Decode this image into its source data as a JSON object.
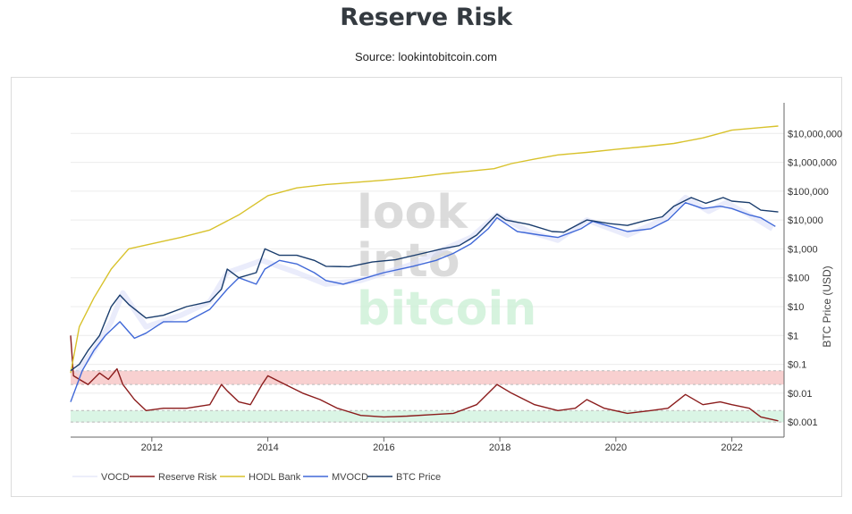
{
  "page": {
    "title": "Reserve Risk",
    "subtitle": "Source: lookintobitcoin.com"
  },
  "watermark": {
    "lines": [
      "look",
      "into",
      "bitcoin"
    ]
  },
  "chart_data": {
    "type": "line",
    "title": "Reserve Risk",
    "ylabel_right": "BTC Price (USD)",
    "xlabel": "",
    "xlim": [
      2010.6,
      2022.9
    ],
    "ylim_log": [
      0.0003,
      100000000
    ],
    "x_ticks": [
      2012,
      2014,
      2016,
      2018,
      2020,
      2022
    ],
    "x_tick_labels": [
      "2012",
      "2014",
      "2016",
      "2018",
      "2020",
      "2022"
    ],
    "y_ticks": [
      0.001,
      0.01,
      0.1,
      1,
      10,
      100,
      1000,
      10000,
      100000,
      1000000,
      10000000
    ],
    "y_tick_labels": [
      "$0.001",
      "$0.01",
      "$0.1",
      "$1",
      "$10",
      "$100",
      "$1,000",
      "$10,000",
      "$100,000",
      "$1,000,000",
      "$10,000,000"
    ],
    "bands": [
      {
        "name": "high-risk-zone",
        "from": 0.02,
        "to": 0.06,
        "color": "#f7c8c8"
      },
      {
        "name": "low-risk-zone",
        "from": 0.001,
        "to": 0.0025,
        "color": "#d4f3e0"
      }
    ],
    "series": [
      {
        "name": "VOCD",
        "color": "#d9dcf7",
        "x": [
          2010.7,
          2011.0,
          2011.3,
          2011.5,
          2011.9,
          2012.5,
          2013.0,
          2013.3,
          2013.9,
          2014.5,
          2015.0,
          2015.6,
          2016.5,
          2017.0,
          2017.5,
          2017.95,
          2018.5,
          2019.0,
          2019.5,
          2020.2,
          2020.8,
          2021.2,
          2021.6,
          2021.9,
          2022.3,
          2022.7
        ],
        "values": [
          0.05,
          0.3,
          3,
          30,
          2,
          5,
          15,
          150,
          400,
          150,
          60,
          80,
          300,
          900,
          2500,
          15000,
          4000,
          2000,
          10000,
          3000,
          10000,
          60000,
          20000,
          40000,
          15000,
          5000
        ]
      },
      {
        "name": "Reserve Risk",
        "color": "#8b1c1c",
        "x": [
          2010.6,
          2010.65,
          2010.75,
          2010.9,
          2011.1,
          2011.25,
          2011.4,
          2011.5,
          2011.7,
          2011.9,
          2012.2,
          2012.6,
          2013.0,
          2013.2,
          2013.3,
          2013.5,
          2013.7,
          2013.9,
          2014.0,
          2014.3,
          2014.6,
          2014.9,
          2015.2,
          2015.6,
          2016.0,
          2016.4,
          2016.8,
          2017.2,
          2017.6,
          2017.95,
          2018.2,
          2018.6,
          2019.0,
          2019.3,
          2019.5,
          2019.8,
          2020.2,
          2020.6,
          2020.9,
          2021.2,
          2021.5,
          2021.8,
          2022.0,
          2022.3,
          2022.5,
          2022.8
        ],
        "values": [
          1.0,
          0.04,
          0.03,
          0.02,
          0.05,
          0.03,
          0.07,
          0.02,
          0.006,
          0.0025,
          0.003,
          0.003,
          0.004,
          0.02,
          0.012,
          0.005,
          0.004,
          0.02,
          0.04,
          0.02,
          0.01,
          0.006,
          0.003,
          0.0017,
          0.0015,
          0.0016,
          0.0018,
          0.002,
          0.004,
          0.02,
          0.01,
          0.004,
          0.0025,
          0.003,
          0.006,
          0.003,
          0.002,
          0.0025,
          0.003,
          0.009,
          0.004,
          0.005,
          0.004,
          0.003,
          0.0015,
          0.0011
        ]
      },
      {
        "name": "HODL Bank",
        "color": "#d8c22c",
        "x": [
          2010.6,
          2010.75,
          2011.0,
          2011.3,
          2011.6,
          2012.0,
          2012.5,
          2013.0,
          2013.5,
          2014.0,
          2014.5,
          2015.0,
          2015.5,
          2016.0,
          2016.5,
          2017.0,
          2017.5,
          2017.9,
          2018.2,
          2018.6,
          2019.0,
          2019.5,
          2020.0,
          2020.5,
          2021.0,
          2021.5,
          2022.0,
          2022.5,
          2022.8
        ],
        "values": [
          0.05,
          2,
          20,
          200,
          1000,
          1500,
          2500,
          4500,
          15000,
          70000,
          130000,
          170000,
          200000,
          240000,
          300000,
          400000,
          500000,
          600000,
          900000,
          1300000,
          1800000,
          2200000,
          2800000,
          3500000,
          4500000,
          7000000,
          13000000,
          16000000,
          18000000
        ]
      },
      {
        "name": "MVOCD",
        "color": "#4169d8",
        "x": [
          2010.6,
          2010.8,
          2011.0,
          2011.2,
          2011.45,
          2011.7,
          2011.9,
          2012.2,
          2012.6,
          2013.0,
          2013.3,
          2013.5,
          2013.8,
          2013.95,
          2014.2,
          2014.5,
          2014.8,
          2015.0,
          2015.3,
          2015.7,
          2016.0,
          2016.5,
          2016.9,
          2017.2,
          2017.5,
          2017.8,
          2017.95,
          2018.3,
          2018.7,
          2019.0,
          2019.4,
          2019.6,
          2019.9,
          2020.2,
          2020.6,
          2020.9,
          2021.2,
          2021.5,
          2021.8,
          2022.0,
          2022.3,
          2022.5,
          2022.75
        ],
        "values": [
          0.005,
          0.06,
          0.3,
          1,
          3,
          0.8,
          1.2,
          3,
          3,
          8,
          40,
          100,
          60,
          200,
          400,
          300,
          150,
          80,
          60,
          100,
          150,
          250,
          400,
          700,
          1500,
          5000,
          12000,
          4000,
          3000,
          2500,
          5000,
          9000,
          6000,
          4000,
          5000,
          10000,
          40000,
          25000,
          30000,
          25000,
          15000,
          12000,
          6000
        ]
      },
      {
        "name": "BTC Price",
        "color": "#1a3d6d",
        "x": [
          2010.6,
          2010.75,
          2010.9,
          2011.1,
          2011.3,
          2011.45,
          2011.6,
          2011.9,
          2012.2,
          2012.6,
          2013.0,
          2013.2,
          2013.3,
          2013.5,
          2013.8,
          2013.95,
          2014.2,
          2014.5,
          2014.8,
          2015.0,
          2015.4,
          2015.8,
          2016.2,
          2016.6,
          2017.0,
          2017.3,
          2017.6,
          2017.95,
          2018.1,
          2018.5,
          2018.9,
          2019.1,
          2019.5,
          2019.9,
          2020.2,
          2020.5,
          2020.8,
          2021.0,
          2021.3,
          2021.55,
          2021.85,
          2022.0,
          2022.3,
          2022.5,
          2022.8
        ],
        "values": [
          0.06,
          0.1,
          0.3,
          1,
          10,
          25,
          12,
          4,
          5,
          10,
          15,
          40,
          200,
          100,
          150,
          1000,
          600,
          600,
          400,
          250,
          240,
          350,
          420,
          650,
          1000,
          1300,
          3000,
          16000,
          10000,
          7000,
          4000,
          3800,
          10000,
          7500,
          6500,
          9500,
          13000,
          30000,
          60000,
          38000,
          60000,
          45000,
          40000,
          22000,
          19000
        ]
      }
    ],
    "legend": {
      "position": "bottom-left",
      "entries": [
        "VOCD",
        "Reserve Risk",
        "HODL Bank",
        "MVOCD",
        "BTC Price"
      ]
    }
  }
}
